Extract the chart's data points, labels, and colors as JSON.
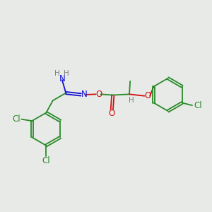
{
  "bg_color": "#e8eae8",
  "atom_colors": {
    "C": "#2a8a2a",
    "H": "#808080",
    "N": "#1010d0",
    "O": "#d01010",
    "Cl": "#2a8a2a"
  },
  "bond_color": "#2a8a2a",
  "font_size": 8.5,
  "title": ""
}
